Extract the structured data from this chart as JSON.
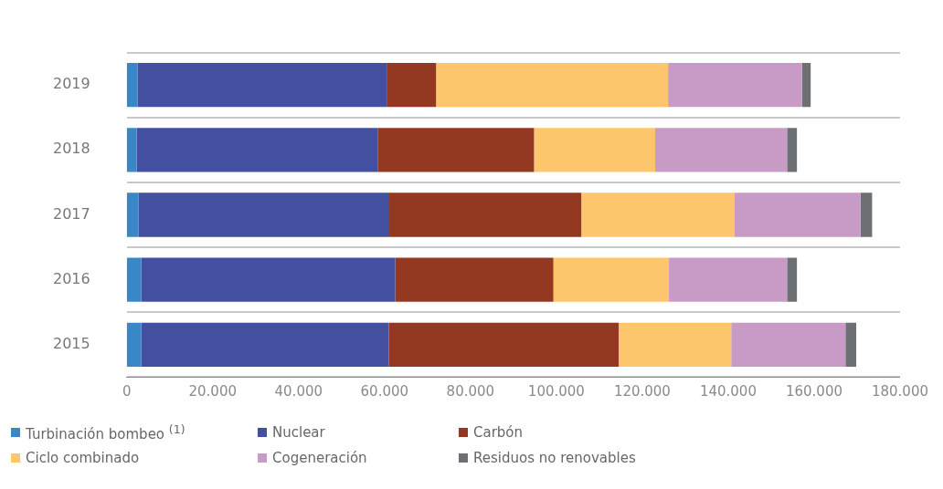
{
  "chart_data": {
    "type": "bar",
    "orientation": "horizontal",
    "stacked": true,
    "categories": [
      "2019",
      "2018",
      "2017",
      "2016",
      "2015"
    ],
    "series": [
      {
        "name": "Turbinación bombeo $^{(1)}$",
        "color": "#3a87c8",
        "values": [
          2500.0,
          2300.0,
          2700.0,
          3400.0,
          3400.0
        ]
      },
      {
        "name": "Nuclear",
        "color": "#434f9f",
        "values": [
          58000,
          56200,
          58200,
          59100,
          57600
        ]
      },
      {
        "name": "Carbón",
        "color": "#933821",
        "values": [
          11500,
          36300,
          44900,
          36800,
          53500
        ]
      },
      {
        "name": "Ciclo combinado",
        "color": "#fdc56c",
        "values": [
          54000,
          28200,
          35700,
          26900,
          26200
        ]
      },
      {
        "name": "Cogeneración",
        "color": "#c79bc6",
        "values": [
          31200,
          30700,
          29300,
          27500,
          26600
        ]
      },
      {
        "name": "Residuos no renovables",
        "color": "#6d7073",
        "values": [
          2000,
          2300,
          2700,
          2300,
          2500
        ]
      }
    ],
    "xlim": [
      0,
      180000
    ],
    "xticks": [
      0,
      {
        "value": 20000,
        "label": "20.000"
      },
      {
        "value": 40000,
        "label": "40.000"
      },
      {
        "value": 60000,
        "label": "60.000"
      },
      {
        "value": 80000,
        "label": "80.000"
      },
      {
        "value": 100000,
        "label": "100.000"
      },
      {
        "value": 120000,
        "label": "120.000"
      },
      {
        "value": 140000,
        "label": "140.000"
      },
      {
        "value": 160000,
        "label": "160.000"
      },
      {
        "value": 180000,
        "label": "180.000"
      }
    ],
    "grid": "y",
    "legend": "bottom"
  }
}
